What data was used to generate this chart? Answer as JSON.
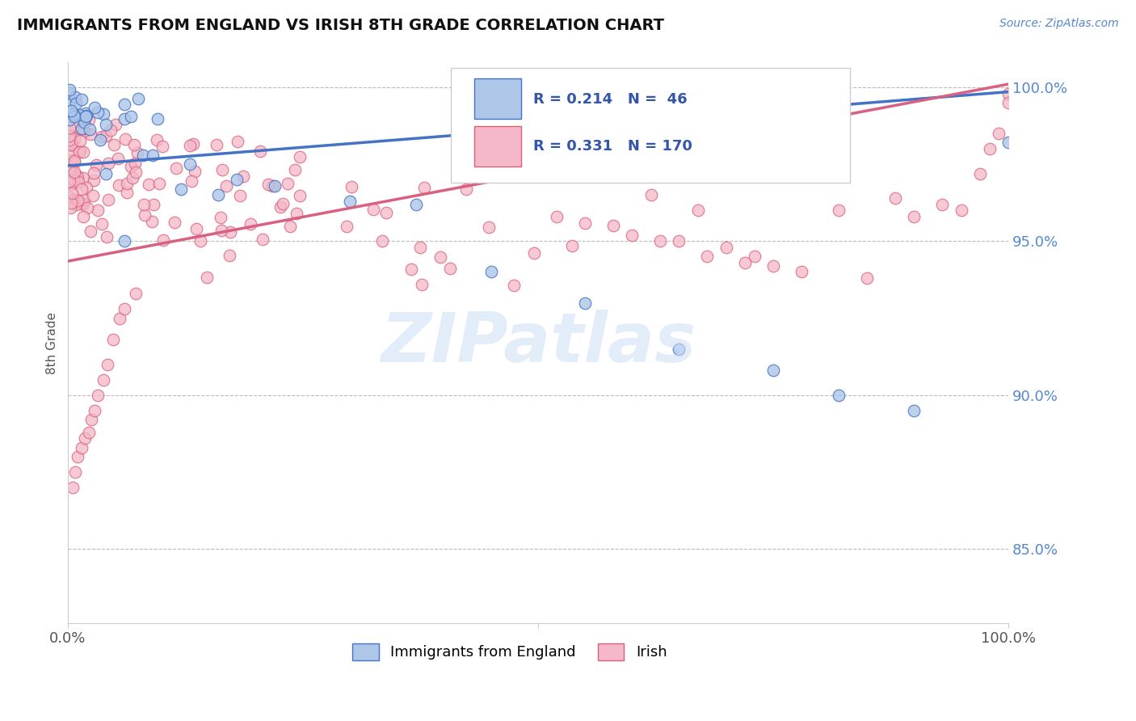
{
  "title": "IMMIGRANTS FROM ENGLAND VS IRISH 8TH GRADE CORRELATION CHART",
  "source_text": "Source: ZipAtlas.com",
  "ylabel": "8th Grade",
  "legend_label_blue": "Immigrants from England",
  "legend_label_pink": "Irish",
  "R_blue": 0.214,
  "N_blue": 46,
  "R_pink": 0.331,
  "N_pink": 170,
  "xlim": [
    0.0,
    1.0
  ],
  "ylim_low": 0.826,
  "ylim_high": 1.008,
  "yticks": [
    0.85,
    0.9,
    0.95,
    1.0
  ],
  "ytick_labels": [
    "85.0%",
    "90.0%",
    "95.0%",
    "100.0%"
  ],
  "color_blue_face": "#aec6e8",
  "color_blue_edge": "#4472c4",
  "color_pink_face": "#f4b8c8",
  "color_pink_edge": "#d9607a",
  "line_color_blue": "#4472c4",
  "line_color_pink": "#d96080",
  "watermark": "ZIPatlas",
  "watermark_color": "#ccddf5",
  "background_color": "#ffffff",
  "grid_color": "#bbbbbb",
  "title_color": "#111111",
  "axis_label_color": "#5588cc",
  "legend_text_color": "#3355aa",
  "blue_trend_x0": 0.0,
  "blue_trend_y0": 0.9745,
  "blue_trend_x1": 1.0,
  "blue_trend_y1": 0.9985,
  "pink_trend_x0": 0.0,
  "pink_trend_y0": 0.9435,
  "pink_trend_x1": 1.0,
  "pink_trend_y1": 1.001
}
